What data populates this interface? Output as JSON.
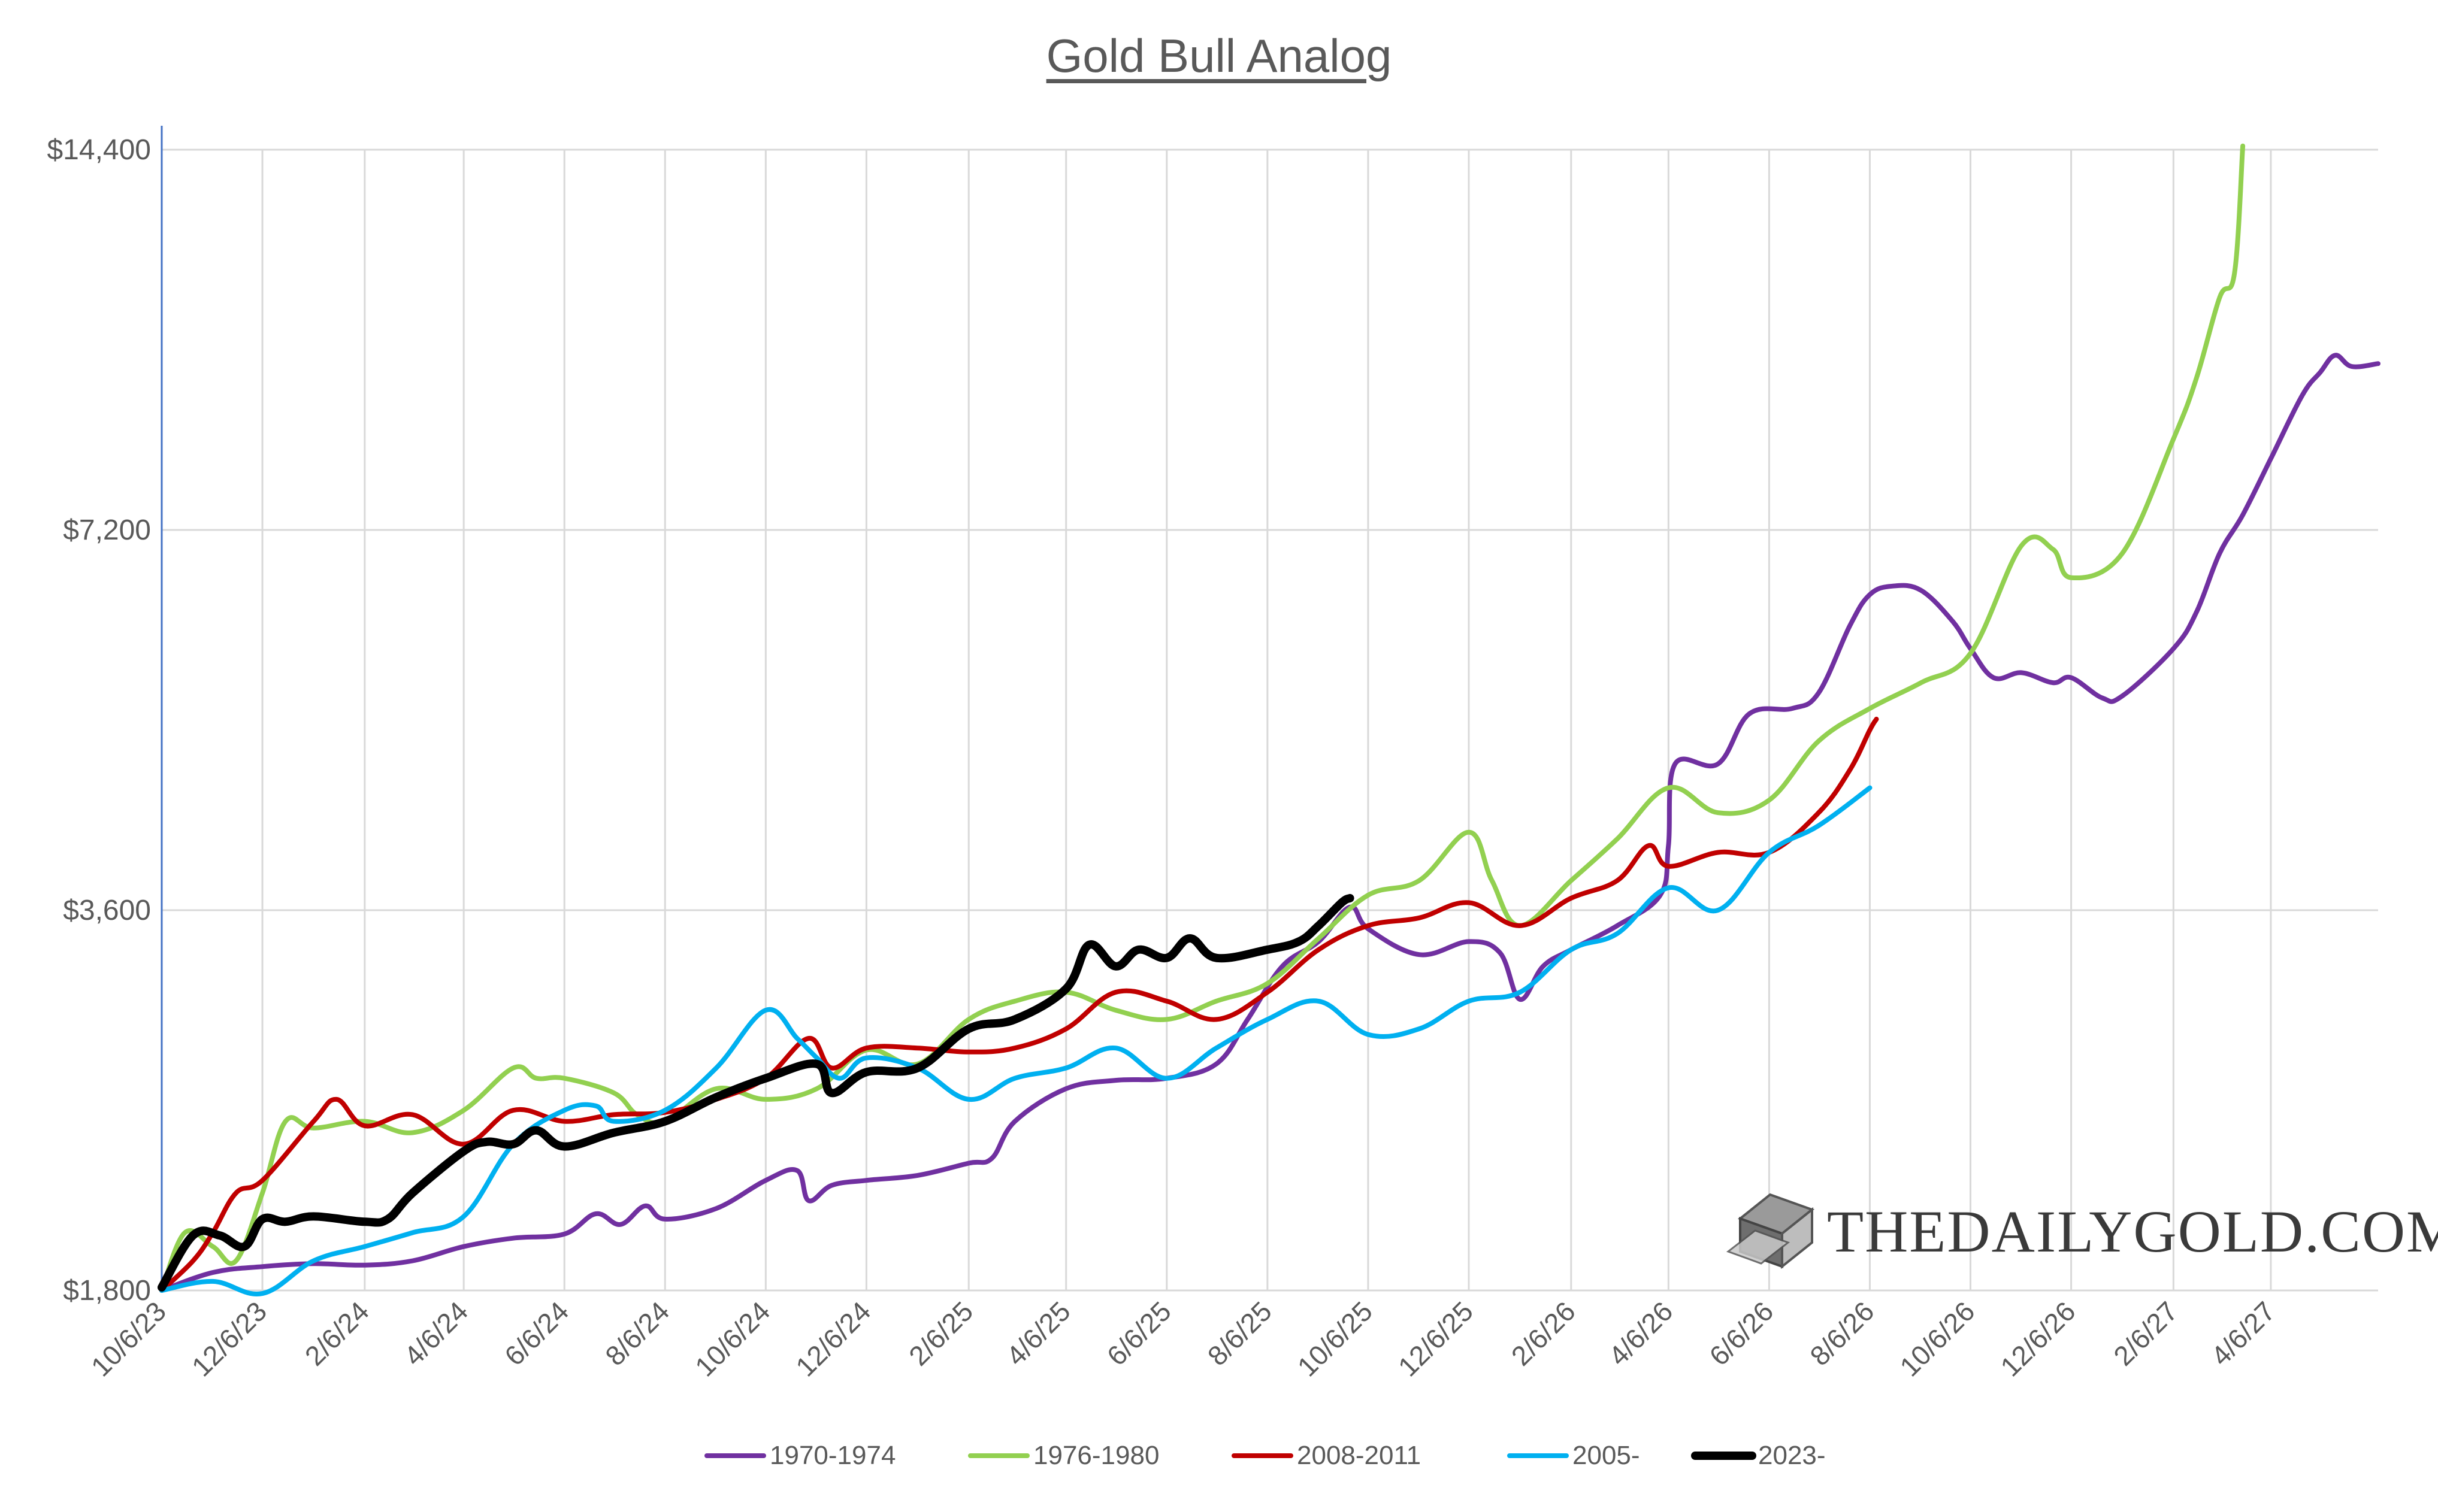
{
  "chart_data": {
    "type": "line",
    "title": "Gold Bull Analog",
    "y_scale": "log",
    "ylim": [
      1800,
      14400
    ],
    "y_ticks": [
      {
        "value": 1800,
        "label": "$1,800"
      },
      {
        "value": 3600,
        "label": "$3,600"
      },
      {
        "value": 7200,
        "label": "$7,200"
      },
      {
        "value": 14400,
        "label": "$14,400"
      }
    ],
    "x_tick_labels": [
      "10/6/23",
      "12/6/23",
      "2/6/24",
      "4/6/24",
      "6/6/24",
      "8/6/24",
      "10/6/24",
      "12/6/24",
      "2/6/25",
      "4/6/25",
      "6/6/25",
      "8/6/25",
      "10/6/25",
      "12/6/25",
      "2/6/26",
      "4/6/26",
      "6/6/26",
      "8/6/26",
      "10/6/26",
      "12/6/26",
      "2/6/27",
      "4/6/27"
    ],
    "xlim": [
      "2023-10-06",
      "2027-06-10"
    ],
    "grid": true,
    "legend_position": "bottom",
    "series": [
      {
        "name": "1970-1974",
        "color": "#7030a0",
        "width": 8,
        "points": [
          [
            "2023-10-06",
            1800
          ],
          [
            "2023-11-06",
            1860
          ],
          [
            "2023-12-06",
            1880
          ],
          [
            "2024-01-06",
            1890
          ],
          [
            "2024-02-06",
            1885
          ],
          [
            "2024-03-06",
            1900
          ],
          [
            "2024-04-06",
            1950
          ],
          [
            "2024-05-06",
            1980
          ],
          [
            "2024-06-06",
            1995
          ],
          [
            "2024-06-25",
            2070
          ],
          [
            "2024-07-10",
            2030
          ],
          [
            "2024-07-25",
            2100
          ],
          [
            "2024-08-06",
            2050
          ],
          [
            "2024-09-06",
            2090
          ],
          [
            "2024-10-06",
            2200
          ],
          [
            "2024-10-25",
            2240
          ],
          [
            "2024-11-01",
            2120
          ],
          [
            "2024-11-15",
            2180
          ],
          [
            "2024-12-06",
            2200
          ],
          [
            "2025-01-06",
            2220
          ],
          [
            "2025-02-06",
            2270
          ],
          [
            "2025-02-20",
            2290
          ],
          [
            "2025-03-06",
            2450
          ],
          [
            "2025-04-06",
            2600
          ],
          [
            "2025-05-06",
            2640
          ],
          [
            "2025-06-06",
            2650
          ],
          [
            "2025-07-06",
            2720
          ],
          [
            "2025-07-25",
            2950
          ],
          [
            "2025-08-15",
            3250
          ],
          [
            "2025-09-06",
            3400
          ],
          [
            "2025-09-25",
            3620
          ],
          [
            "2025-10-06",
            3480
          ],
          [
            "2025-11-06",
            3320
          ],
          [
            "2025-12-06",
            3400
          ],
          [
            "2025-12-25",
            3330
          ],
          [
            "2026-01-06",
            3060
          ],
          [
            "2026-01-20",
            3250
          ],
          [
            "2026-02-06",
            3350
          ],
          [
            "2026-03-06",
            3500
          ],
          [
            "2026-04-01",
            3700
          ],
          [
            "2026-04-06",
            4050
          ],
          [
            "2026-04-10",
            4700
          ],
          [
            "2026-05-06",
            4700
          ],
          [
            "2026-05-25",
            5150
          ],
          [
            "2026-06-20",
            5200
          ],
          [
            "2026-07-06",
            5350
          ],
          [
            "2026-07-25",
            6050
          ],
          [
            "2026-08-06",
            6400
          ],
          [
            "2026-08-20",
            6500
          ],
          [
            "2026-09-06",
            6450
          ],
          [
            "2026-09-25",
            6100
          ],
          [
            "2026-10-06",
            5800
          ],
          [
            "2026-10-20",
            5500
          ],
          [
            "2026-11-06",
            5550
          ],
          [
            "2026-11-25",
            5450
          ],
          [
            "2026-12-06",
            5500
          ],
          [
            "2026-12-25",
            5300
          ],
          [
            "2027-01-06",
            5320
          ],
          [
            "2027-02-06",
            5800
          ],
          [
            "2027-02-20",
            6200
          ],
          [
            "2027-03-06",
            6900
          ],
          [
            "2027-03-20",
            7400
          ],
          [
            "2027-04-06",
            8200
          ],
          [
            "2027-04-25",
            9200
          ],
          [
            "2027-05-06",
            9600
          ],
          [
            "2027-05-15",
            9900
          ],
          [
            "2027-05-25",
            9700
          ],
          [
            "2027-06-10",
            9750
          ]
        ]
      },
      {
        "name": "1976-1980",
        "color": "#92d050",
        "width": 8,
        "points": [
          [
            "2023-10-06",
            1800
          ],
          [
            "2023-10-20",
            2000
          ],
          [
            "2023-11-06",
            1950
          ],
          [
            "2023-11-20",
            1900
          ],
          [
            "2023-12-06",
            2150
          ],
          [
            "2023-12-20",
            2450
          ],
          [
            "2024-01-06",
            2420
          ],
          [
            "2024-02-06",
            2450
          ],
          [
            "2024-03-06",
            2400
          ],
          [
            "2024-04-06",
            2500
          ],
          [
            "2024-05-06",
            2700
          ],
          [
            "2024-05-20",
            2650
          ],
          [
            "2024-06-06",
            2650
          ],
          [
            "2024-07-06",
            2580
          ],
          [
            "2024-07-20",
            2480
          ],
          [
            "2024-08-06",
            2450
          ],
          [
            "2024-09-06",
            2600
          ],
          [
            "2024-10-06",
            2550
          ],
          [
            "2024-11-06",
            2600
          ],
          [
            "2024-12-06",
            2790
          ],
          [
            "2025-01-06",
            2720
          ],
          [
            "2025-02-06",
            2950
          ],
          [
            "2025-03-06",
            3050
          ],
          [
            "2025-04-06",
            3100
          ],
          [
            "2025-05-06",
            3000
          ],
          [
            "2025-06-06",
            2950
          ],
          [
            "2025-07-06",
            3050
          ],
          [
            "2025-08-06",
            3150
          ],
          [
            "2025-09-06",
            3420
          ],
          [
            "2025-10-06",
            3700
          ],
          [
            "2025-11-06",
            3800
          ],
          [
            "2025-12-06",
            4150
          ],
          [
            "2025-12-20",
            3800
          ],
          [
            "2026-01-06",
            3500
          ],
          [
            "2026-02-06",
            3800
          ],
          [
            "2026-03-06",
            4100
          ],
          [
            "2026-04-06",
            4500
          ],
          [
            "2026-05-06",
            4300
          ],
          [
            "2026-06-06",
            4400
          ],
          [
            "2026-07-06",
            4900
          ],
          [
            "2026-08-06",
            5200
          ],
          [
            "2026-09-06",
            5450
          ],
          [
            "2026-10-06",
            5750
          ],
          [
            "2026-11-06",
            7000
          ],
          [
            "2026-11-25",
            6950
          ],
          [
            "2026-12-06",
            6600
          ],
          [
            "2027-01-06",
            6900
          ],
          [
            "2027-02-06",
            8500
          ],
          [
            "2027-02-20",
            9500
          ],
          [
            "2027-03-06",
            11000
          ],
          [
            "2027-03-15",
            11500
          ],
          [
            "2027-03-20",
            14500
          ]
        ]
      },
      {
        "name": "2008-2011",
        "color": "#c00000",
        "width": 8,
        "points": [
          [
            "2023-10-06",
            1800
          ],
          [
            "2023-10-25",
            1900
          ],
          [
            "2023-11-06",
            2000
          ],
          [
            "2023-11-20",
            2150
          ],
          [
            "2023-12-06",
            2200
          ],
          [
            "2024-01-06",
            2450
          ],
          [
            "2024-01-20",
            2550
          ],
          [
            "2024-02-06",
            2430
          ],
          [
            "2024-03-06",
            2480
          ],
          [
            "2024-04-06",
            2350
          ],
          [
            "2024-05-06",
            2500
          ],
          [
            "2024-06-06",
            2450
          ],
          [
            "2024-07-06",
            2480
          ],
          [
            "2024-08-06",
            2490
          ],
          [
            "2024-09-06",
            2550
          ],
          [
            "2024-10-06",
            2650
          ],
          [
            "2024-11-01",
            2850
          ],
          [
            "2024-11-15",
            2700
          ],
          [
            "2024-12-06",
            2800
          ],
          [
            "2025-01-06",
            2800
          ],
          [
            "2025-02-06",
            2780
          ],
          [
            "2025-03-06",
            2800
          ],
          [
            "2025-04-06",
            2900
          ],
          [
            "2025-05-06",
            3100
          ],
          [
            "2025-06-06",
            3050
          ],
          [
            "2025-07-06",
            2950
          ],
          [
            "2025-08-06",
            3100
          ],
          [
            "2025-09-06",
            3350
          ],
          [
            "2025-10-06",
            3500
          ],
          [
            "2025-11-06",
            3550
          ],
          [
            "2025-12-06",
            3650
          ],
          [
            "2026-01-06",
            3500
          ],
          [
            "2026-02-06",
            3680
          ],
          [
            "2026-03-06",
            3800
          ],
          [
            "2026-03-25",
            4050
          ],
          [
            "2026-04-06",
            3900
          ],
          [
            "2026-05-06",
            4000
          ],
          [
            "2026-06-06",
            4000
          ],
          [
            "2026-07-06",
            4300
          ],
          [
            "2026-07-25",
            4650
          ],
          [
            "2026-08-06",
            5000
          ],
          [
            "2026-08-10",
            5100
          ]
        ]
      },
      {
        "name": "2005-",
        "color": "#00b0f0",
        "width": 8,
        "points": [
          [
            "2023-10-06",
            1800
          ],
          [
            "2023-11-06",
            1830
          ],
          [
            "2023-12-06",
            1790
          ],
          [
            "2024-01-06",
            1900
          ],
          [
            "2024-02-06",
            1950
          ],
          [
            "2024-03-06",
            2000
          ],
          [
            "2024-04-06",
            2060
          ],
          [
            "2024-05-06",
            2350
          ],
          [
            "2024-06-06",
            2500
          ],
          [
            "2024-06-25",
            2520
          ],
          [
            "2024-07-06",
            2450
          ],
          [
            "2024-08-06",
            2500
          ],
          [
            "2024-09-06",
            2700
          ],
          [
            "2024-10-06",
            3000
          ],
          [
            "2024-10-25",
            2850
          ],
          [
            "2024-11-06",
            2750
          ],
          [
            "2024-11-20",
            2650
          ],
          [
            "2024-12-06",
            2750
          ],
          [
            "2025-01-06",
            2700
          ],
          [
            "2025-02-06",
            2550
          ],
          [
            "2025-03-06",
            2650
          ],
          [
            "2025-04-06",
            2700
          ],
          [
            "2025-05-06",
            2800
          ],
          [
            "2025-06-06",
            2650
          ],
          [
            "2025-07-06",
            2800
          ],
          [
            "2025-08-06",
            2950
          ],
          [
            "2025-09-06",
            3050
          ],
          [
            "2025-10-06",
            2870
          ],
          [
            "2025-11-06",
            2900
          ],
          [
            "2025-12-06",
            3050
          ],
          [
            "2026-01-06",
            3100
          ],
          [
            "2026-02-06",
            3350
          ],
          [
            "2026-03-06",
            3450
          ],
          [
            "2026-04-06",
            3750
          ],
          [
            "2026-05-06",
            3600
          ],
          [
            "2026-06-06",
            4000
          ],
          [
            "2026-07-06",
            4200
          ],
          [
            "2026-08-06",
            4500
          ]
        ]
      },
      {
        "name": "2023-",
        "color": "#000000",
        "width": 14,
        "points": [
          [
            "2023-10-06",
            1810
          ],
          [
            "2023-10-25",
            1990
          ],
          [
            "2023-11-10",
            1990
          ],
          [
            "2023-11-25",
            1950
          ],
          [
            "2023-12-06",
            2050
          ],
          [
            "2023-12-20",
            2040
          ],
          [
            "2024-01-06",
            2060
          ],
          [
            "2024-02-06",
            2040
          ],
          [
            "2024-02-20",
            2050
          ],
          [
            "2024-03-06",
            2150
          ],
          [
            "2024-04-06",
            2320
          ],
          [
            "2024-04-20",
            2360
          ],
          [
            "2024-05-06",
            2350
          ],
          [
            "2024-05-20",
            2410
          ],
          [
            "2024-06-06",
            2340
          ],
          [
            "2024-07-06",
            2400
          ],
          [
            "2024-08-06",
            2450
          ],
          [
            "2024-09-06",
            2560
          ],
          [
            "2024-10-06",
            2650
          ],
          [
            "2024-11-06",
            2720
          ],
          [
            "2024-11-15",
            2580
          ],
          [
            "2024-12-06",
            2680
          ],
          [
            "2025-01-06",
            2700
          ],
          [
            "2025-02-06",
            2900
          ],
          [
            "2025-03-06",
            2950
          ],
          [
            "2025-04-06",
            3120
          ],
          [
            "2025-04-20",
            3380
          ],
          [
            "2025-05-06",
            3250
          ],
          [
            "2025-05-20",
            3350
          ],
          [
            "2025-06-06",
            3300
          ],
          [
            "2025-06-20",
            3420
          ],
          [
            "2025-07-06",
            3300
          ],
          [
            "2025-08-06",
            3350
          ],
          [
            "2025-08-25",
            3400
          ],
          [
            "2025-09-06",
            3500
          ],
          [
            "2025-09-20",
            3650
          ],
          [
            "2025-09-25",
            3680
          ]
        ]
      }
    ]
  },
  "watermark": {
    "text": "THEDAILYGOLD.COM"
  }
}
